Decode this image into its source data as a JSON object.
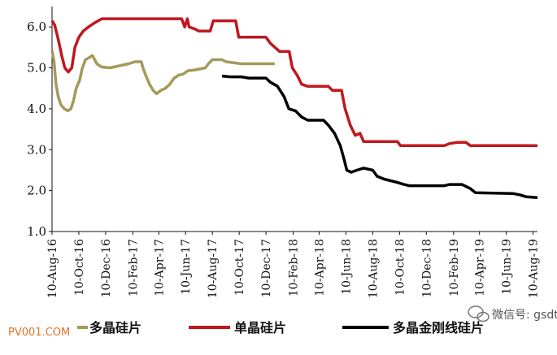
{
  "chart_data": {
    "type": "line",
    "title": "",
    "xlabel": "",
    "ylabel": "",
    "ylim": [
      1.0,
      6.5
    ],
    "yticks": [
      "1.0",
      "2.0",
      "3.0",
      "4.0",
      "5.0",
      "6.0"
    ],
    "x_tick_labels": [
      "10-Aug-16",
      "10-Oct-16",
      "10-Dec-16",
      "10-Feb-17",
      "10-Apr-17",
      "10-Jun-17",
      "10-Aug-17",
      "10-Oct-17",
      "10-Dec-17",
      "10-Feb-18",
      "10-Apr-18",
      "10-Jun-18",
      "10-Aug-18",
      "10-Oct-18",
      "10-Dec-18",
      "10-Feb-19",
      "10-Apr-19",
      "10-Jun-19",
      "10-Aug-19"
    ],
    "x_range": [
      "2016-08-10",
      "2019-08-20"
    ],
    "legend_position": "bottom",
    "grid": false,
    "series": [
      {
        "name": "多晶硅片",
        "color": "#a49a5a",
        "points": [
          [
            "2016-08-10",
            5.42
          ],
          [
            "2016-08-14",
            5.2
          ],
          [
            "2016-08-19",
            4.6
          ],
          [
            "2016-08-24",
            4.3
          ],
          [
            "2016-08-30",
            4.1
          ],
          [
            "2016-09-07",
            4.0
          ],
          [
            "2016-09-15",
            3.95
          ],
          [
            "2016-09-22",
            4.0
          ],
          [
            "2016-09-28",
            4.2
          ],
          [
            "2016-10-04",
            4.5
          ],
          [
            "2016-10-12",
            4.7
          ],
          [
            "2016-10-18",
            5.0
          ],
          [
            "2016-10-25",
            5.2
          ],
          [
            "2016-11-02",
            5.25
          ],
          [
            "2016-11-10",
            5.3
          ],
          [
            "2016-11-20",
            5.1
          ],
          [
            "2016-12-01",
            5.02
          ],
          [
            "2016-12-20",
            5.0
          ],
          [
            "2017-01-10",
            5.05
          ],
          [
            "2017-01-31",
            5.1
          ],
          [
            "2017-02-15",
            5.15
          ],
          [
            "2017-03-01",
            5.15
          ],
          [
            "2017-03-05",
            5.0
          ],
          [
            "2017-03-12",
            4.8
          ],
          [
            "2017-03-20",
            4.6
          ],
          [
            "2017-03-28",
            4.45
          ],
          [
            "2017-04-05",
            4.37
          ],
          [
            "2017-04-15",
            4.45
          ],
          [
            "2017-04-25",
            4.5
          ],
          [
            "2017-05-05",
            4.6
          ],
          [
            "2017-05-15",
            4.75
          ],
          [
            "2017-05-25",
            4.82
          ],
          [
            "2017-06-05",
            4.85
          ],
          [
            "2017-06-15",
            4.93
          ],
          [
            "2017-07-01",
            4.95
          ],
          [
            "2017-07-25",
            5.0
          ],
          [
            "2017-08-01",
            5.1
          ],
          [
            "2017-08-10",
            5.2
          ],
          [
            "2017-09-01",
            5.2
          ],
          [
            "2017-09-10",
            5.15
          ],
          [
            "2017-10-15",
            5.1
          ],
          [
            "2017-12-30",
            5.1
          ]
        ]
      },
      {
        "name": "单晶硅片",
        "color": "#c0181f",
        "points": [
          [
            "2016-08-10",
            6.15
          ],
          [
            "2016-08-16",
            6.05
          ],
          [
            "2016-08-24",
            5.7
          ],
          [
            "2016-09-01",
            5.3
          ],
          [
            "2016-09-08",
            5.0
          ],
          [
            "2016-09-16",
            4.9
          ],
          [
            "2016-09-24",
            5.0
          ],
          [
            "2016-10-01",
            5.5
          ],
          [
            "2016-10-10",
            5.75
          ],
          [
            "2016-10-20",
            5.9
          ],
          [
            "2016-11-01",
            6.0
          ],
          [
            "2016-11-15",
            6.1
          ],
          [
            "2016-12-01",
            6.2
          ],
          [
            "2017-06-01",
            6.2
          ],
          [
            "2017-06-08",
            6.0
          ],
          [
            "2017-06-14",
            6.2
          ],
          [
            "2017-06-18",
            6.0
          ],
          [
            "2017-07-01",
            5.95
          ],
          [
            "2017-07-10",
            5.9
          ],
          [
            "2017-08-05",
            5.9
          ],
          [
            "2017-08-12",
            6.15
          ],
          [
            "2017-10-02",
            6.15
          ],
          [
            "2017-10-09",
            5.75
          ],
          [
            "2017-12-10",
            5.75
          ],
          [
            "2017-12-20",
            5.6
          ],
          [
            "2018-01-10",
            5.4
          ],
          [
            "2018-02-01",
            5.4
          ],
          [
            "2018-02-08",
            5.0
          ],
          [
            "2018-02-20",
            4.8
          ],
          [
            "2018-03-01",
            4.6
          ],
          [
            "2018-03-15",
            4.55
          ],
          [
            "2018-05-01",
            4.55
          ],
          [
            "2018-05-10",
            4.45
          ],
          [
            "2018-05-31",
            4.45
          ],
          [
            "2018-06-08",
            4.0
          ],
          [
            "2018-06-20",
            3.6
          ],
          [
            "2018-07-01",
            3.35
          ],
          [
            "2018-07-12",
            3.4
          ],
          [
            "2018-07-20",
            3.2
          ],
          [
            "2018-10-05",
            3.2
          ],
          [
            "2018-10-12",
            3.1
          ],
          [
            "2019-01-20",
            3.1
          ],
          [
            "2019-02-01",
            3.15
          ],
          [
            "2019-02-20",
            3.18
          ],
          [
            "2019-03-10",
            3.18
          ],
          [
            "2019-03-20",
            3.1
          ],
          [
            "2019-08-20",
            3.1
          ]
        ]
      },
      {
        "name": "多晶金刚线硅片",
        "color": "#000000",
        "points": [
          [
            "2017-09-01",
            4.8
          ],
          [
            "2017-09-20",
            4.78
          ],
          [
            "2017-10-15",
            4.78
          ],
          [
            "2017-11-01",
            4.75
          ],
          [
            "2017-12-10",
            4.75
          ],
          [
            "2017-12-20",
            4.65
          ],
          [
            "2018-01-05",
            4.55
          ],
          [
            "2018-01-20",
            4.3
          ],
          [
            "2018-01-31",
            4.0
          ],
          [
            "2018-02-15",
            3.95
          ],
          [
            "2018-03-01",
            3.8
          ],
          [
            "2018-03-15",
            3.72
          ],
          [
            "2018-04-20",
            3.72
          ],
          [
            "2018-05-01",
            3.6
          ],
          [
            "2018-05-15",
            3.4
          ],
          [
            "2018-05-28",
            3.1
          ],
          [
            "2018-06-05",
            2.8
          ],
          [
            "2018-06-12",
            2.5
          ],
          [
            "2018-06-22",
            2.45
          ],
          [
            "2018-07-05",
            2.5
          ],
          [
            "2018-07-20",
            2.55
          ],
          [
            "2018-08-10",
            2.5
          ],
          [
            "2018-08-20",
            2.35
          ],
          [
            "2018-09-05",
            2.28
          ],
          [
            "2018-10-05",
            2.2
          ],
          [
            "2018-10-20",
            2.15
          ],
          [
            "2018-11-01",
            2.12
          ],
          [
            "2019-01-20",
            2.12
          ],
          [
            "2019-02-01",
            2.15
          ],
          [
            "2019-03-01",
            2.15
          ],
          [
            "2019-03-20",
            2.05
          ],
          [
            "2019-04-01",
            1.95
          ],
          [
            "2019-06-25",
            1.93
          ],
          [
            "2019-07-10",
            1.9
          ],
          [
            "2019-07-25",
            1.85
          ],
          [
            "2019-08-20",
            1.83
          ]
        ]
      }
    ]
  },
  "watermark": {
    "wechat_label": "微信号: gsdtfx",
    "site_label": "PV001.COM"
  }
}
